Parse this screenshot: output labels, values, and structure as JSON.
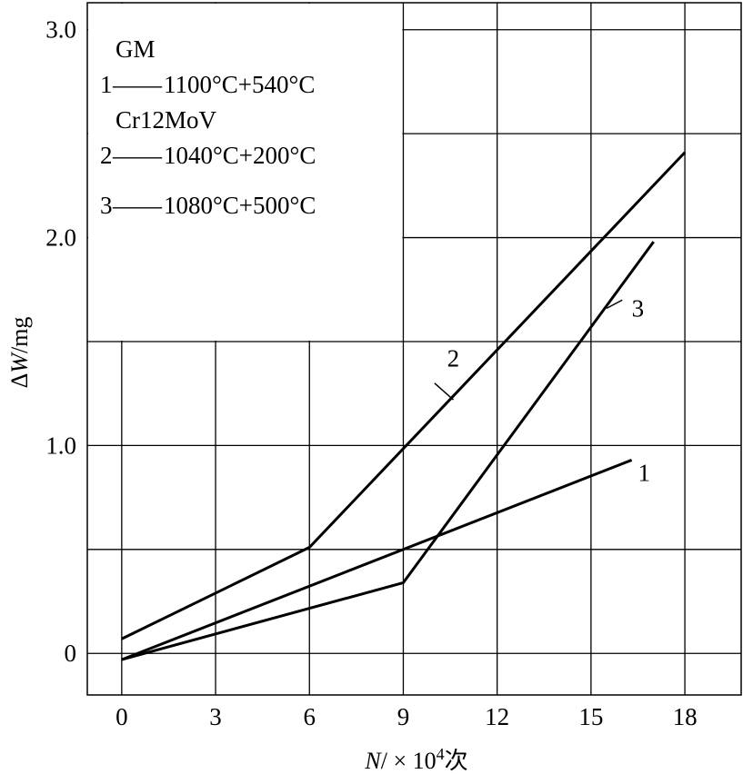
{
  "chart_data": {
    "type": "line",
    "xlabel_prefix": "N",
    "xlabel_mid": "/ × 10",
    "xlabel_exp": "4",
    "xlabel_suffix": "次",
    "ylabel_delta": "Δ",
    "ylabel_var": "W",
    "ylabel_unit": "/mg",
    "x_ticks": [
      "0",
      "3",
      "6",
      "9",
      "12",
      "15",
      "18"
    ],
    "y_ticks": [
      "0",
      "1.0",
      "2.0",
      "3.0"
    ],
    "xlim": [
      -1.1,
      19.8
    ],
    "ylim": [
      -0.2,
      3.13
    ],
    "grid": true,
    "legend": {
      "groups": [
        {
          "header": "GM",
          "entries": [
            {
              "num": "1",
              "dash": "——",
              "text": "1100°C+540°C"
            }
          ]
        },
        {
          "header": "Cr12MoV",
          "entries": [
            {
              "num": "2",
              "dash": "——",
              "text": "1040°C+200°C"
            },
            {
              "num": "3",
              "dash": "——",
              "text": "1080°C+500°C"
            }
          ]
        }
      ],
      "placement": "top-left"
    },
    "series": [
      {
        "name": "1",
        "points": [
          [
            0,
            -0.03
          ],
          [
            16.3,
            0.93
          ]
        ],
        "label_at": [
          16.5,
          0.83
        ]
      },
      {
        "name": "2",
        "points": [
          [
            0,
            0.07
          ],
          [
            6,
            0.51
          ],
          [
            18,
            2.41
          ]
        ],
        "label_at": [
          10.4,
          1.38
        ]
      },
      {
        "name": "3",
        "points": [
          [
            0,
            -0.03
          ],
          [
            9,
            0.34
          ],
          [
            17,
            1.98
          ]
        ],
        "label_at": [
          16.3,
          1.62
        ]
      }
    ]
  }
}
